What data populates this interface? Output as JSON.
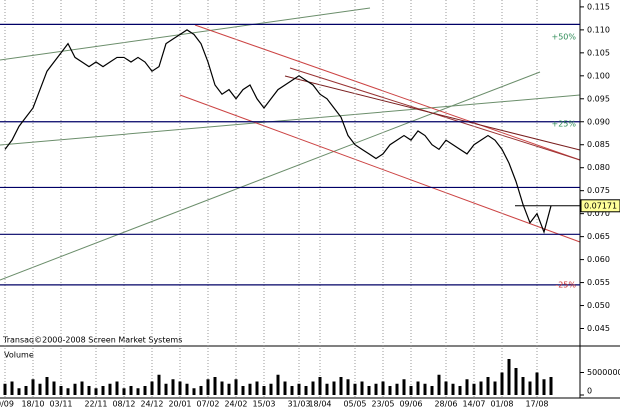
{
  "chart_data": {
    "type": "line",
    "color": "#000000",
    "categories": [
      "0/09",
      null,
      null,
      null,
      "18/10",
      null,
      null,
      null,
      "03/11",
      null,
      null,
      null,
      null,
      "22/11",
      null,
      null,
      null,
      "08/12",
      null,
      null,
      null,
      "24/12",
      null,
      null,
      null,
      "20/01",
      null,
      null,
      null,
      "07/02",
      null,
      null,
      null,
      "24/02",
      null,
      null,
      null,
      "15/03",
      null,
      null,
      null,
      null,
      "31/03",
      null,
      null,
      "18/04",
      null,
      null,
      null,
      null,
      "05/05",
      null,
      null,
      null,
      "23/05",
      null,
      null,
      null,
      "09/06",
      null,
      null,
      null,
      null,
      "28/06",
      null,
      null,
      null,
      "14/07",
      null,
      null,
      null,
      "01/08",
      null,
      null,
      null,
      null,
      "17/08",
      null,
      null
    ],
    "values": [
      0.084,
      0.086,
      0.089,
      0.091,
      0.093,
      0.097,
      0.101,
      0.103,
      0.105,
      0.107,
      0.104,
      0.103,
      0.102,
      0.103,
      0.102,
      0.103,
      0.104,
      0.104,
      0.103,
      0.104,
      0.103,
      0.101,
      0.102,
      0.107,
      0.108,
      0.109,
      0.11,
      0.109,
      0.107,
      0.103,
      0.098,
      0.096,
      0.097,
      0.095,
      0.097,
      0.098,
      0.095,
      0.093,
      0.095,
      0.097,
      0.098,
      0.099,
      0.1,
      0.099,
      0.098,
      0.096,
      0.095,
      0.093,
      0.091,
      0.087,
      0.085,
      0.084,
      0.083,
      0.082,
      0.083,
      0.085,
      0.086,
      0.087,
      0.086,
      0.088,
      0.087,
      0.085,
      0.084,
      0.086,
      0.085,
      0.084,
      0.083,
      0.085,
      0.086,
      0.087,
      0.086,
      0.084,
      0.081,
      0.077,
      0.072,
      0.068,
      0.07,
      0.066,
      0.07171
    ],
    "ylim": [
      0.0425,
      0.1165
    ],
    "yticks": [
      {
        "value": 0.115,
        "label": "0.115"
      },
      {
        "value": 0.11,
        "label": "0.110"
      },
      {
        "value": 0.105,
        "label": "0.105"
      },
      {
        "value": 0.1,
        "label": "0.100"
      },
      {
        "value": 0.095,
        "label": "0.095"
      },
      {
        "value": 0.09,
        "label": "0.090"
      },
      {
        "value": 0.085,
        "label": "0.085"
      },
      {
        "value": 0.08,
        "label": "0.080"
      },
      {
        "value": 0.075,
        "label": "0.075"
      },
      {
        "value": 0.07,
        "label": "0.070"
      },
      {
        "value": 0.065,
        "label": "0.065"
      },
      {
        "value": 0.06,
        "label": "0.060"
      },
      {
        "value": 0.055,
        "label": "0.055"
      },
      {
        "value": 0.05,
        "label": "0.050"
      },
      {
        "value": 0.045,
        "label": "0.045"
      }
    ],
    "levels": [
      0.1112,
      0.09,
      0.0757,
      0.0655,
      0.0545
    ],
    "level_color": "#000066",
    "annotations": [
      {
        "text": "+50%",
        "y": 0.1085,
        "color": "#2e8b57"
      },
      {
        "text": "+25%",
        "y": 0.0895,
        "color": "#2e8b57"
      },
      {
        "text": "-25%",
        "y": 0.0545,
        "color": "#cc3333"
      }
    ],
    "copyright": "Transaq©2000-2008 Screen Market Systems",
    "volume": {
      "label": "Volume",
      "color": "#000000",
      "ylim": [
        0,
        10000000
      ],
      "yticks": [
        0,
        5000000
      ],
      "values": [
        2500000,
        3000000,
        1500000,
        2000000,
        3500000,
        2500000,
        4000000,
        3000000,
        2000000,
        1500000,
        2500000,
        3000000,
        2000000,
        1500000,
        2000000,
        2500000,
        3000000,
        1500000,
        2000000,
        1500000,
        2000000,
        3000000,
        4500000,
        2500000,
        3500000,
        3000000,
        2500000,
        1500000,
        2000000,
        3500000,
        4000000,
        3000000,
        2500000,
        3500000,
        2000000,
        2500000,
        3000000,
        2000000,
        2500000,
        4500000,
        3000000,
        2000000,
        2500000,
        2000000,
        3000000,
        4000000,
        2500000,
        3000000,
        4000000,
        3500000,
        2500000,
        3000000,
        2000000,
        2500000,
        3000000,
        2000000,
        2500000,
        3500000,
        2000000,
        3000000,
        2500000,
        2000000,
        4500000,
        3000000,
        2500000,
        2000000,
        3500000,
        2500000,
        3000000,
        4000000,
        3000000,
        5000000,
        8000000,
        6000000,
        4000000,
        3000000,
        5000000,
        3500000,
        4000000
      ]
    }
  }
}
